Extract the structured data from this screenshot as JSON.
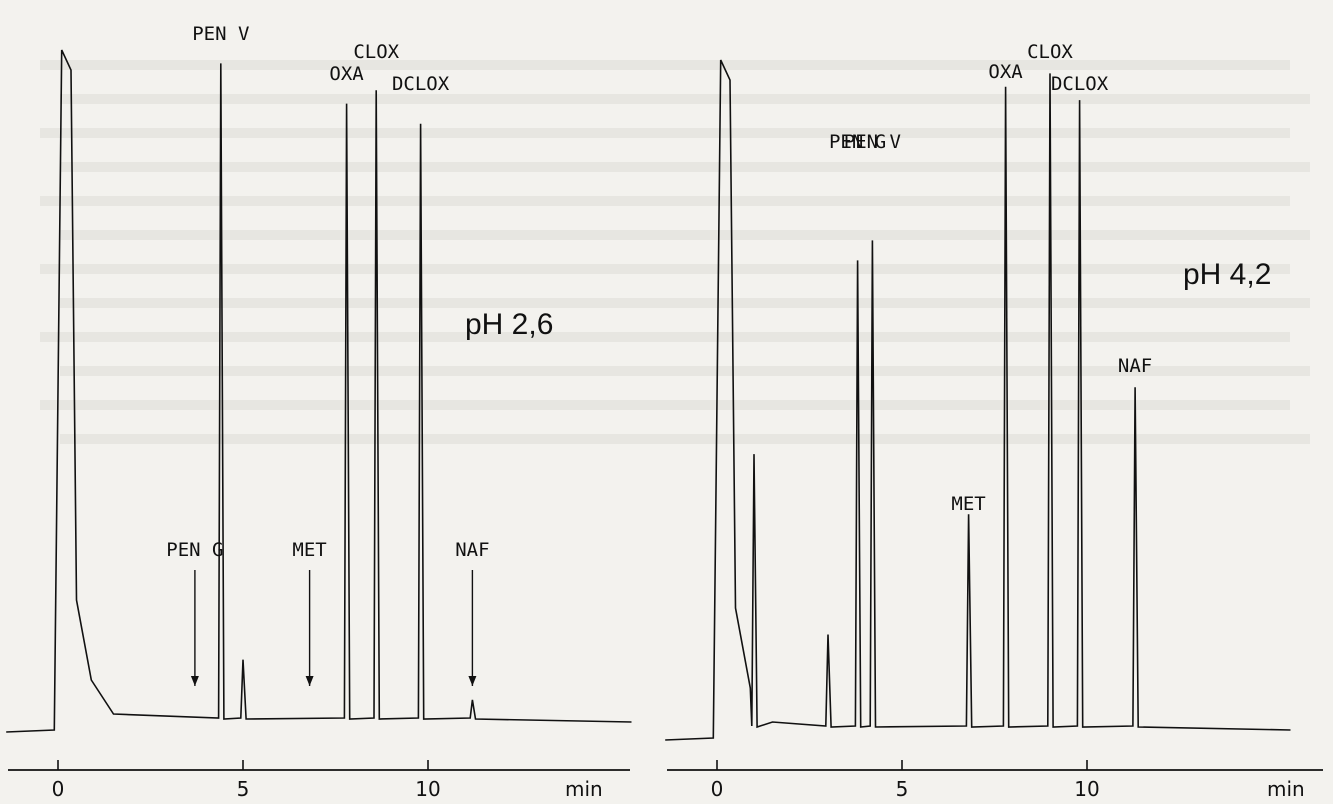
{
  "chart_data": [
    {
      "type": "line",
      "panel": "left",
      "annotation": "pH 2,6",
      "xlabel": "min",
      "xlim": [
        0,
        15.5
      ],
      "x_ticks": [
        {
          "value": 0,
          "label": "0"
        },
        {
          "value": 5,
          "label": "5"
        },
        {
          "value": 10,
          "label": "10"
        }
      ],
      "peaks": [
        {
          "label": "PEN V",
          "x": 4.4,
          "height": 0.98
        },
        {
          "label": "OXA",
          "x": 7.8,
          "height": 0.92
        },
        {
          "label": "CLOX",
          "x": 8.6,
          "height": 0.94
        },
        {
          "label": "DCLOX",
          "x": 9.8,
          "height": 0.89
        },
        {
          "label": "PEN G",
          "x": 3.7,
          "height": 0.0,
          "arrow": true
        },
        {
          "label": "MET",
          "x": 6.8,
          "height": 0.0,
          "arrow": true
        },
        {
          "label": "NAF",
          "x": 11.2,
          "height": 0.03,
          "arrow": true
        }
      ],
      "minor_peaks": [
        {
          "x": 5.0,
          "height": 0.09
        }
      ]
    },
    {
      "type": "line",
      "panel": "right",
      "annotation": "pH 4,2",
      "xlabel": "min",
      "xlim": [
        0,
        15.5
      ],
      "x_ticks": [
        {
          "value": 0,
          "label": "0"
        },
        {
          "value": 5,
          "label": "5"
        },
        {
          "value": 10,
          "label": "10"
        }
      ],
      "peaks": [
        {
          "label": "PEN G",
          "x": 3.8,
          "height": 0.7
        },
        {
          "label": "PEN V",
          "x": 4.2,
          "height": 0.73
        },
        {
          "label": "MET",
          "x": 6.8,
          "height": 0.32
        },
        {
          "label": "OXA",
          "x": 7.8,
          "height": 0.96
        },
        {
          "label": "CLOX",
          "x": 9.0,
          "height": 0.98
        },
        {
          "label": "DCLOX",
          "x": 9.8,
          "height": 0.94
        },
        {
          "label": "NAF",
          "x": 11.3,
          "height": 0.51
        }
      ],
      "minor_peaks": [
        {
          "x": 1.0,
          "height": 0.41
        },
        {
          "x": 3.0,
          "height": 0.14
        }
      ]
    }
  ]
}
